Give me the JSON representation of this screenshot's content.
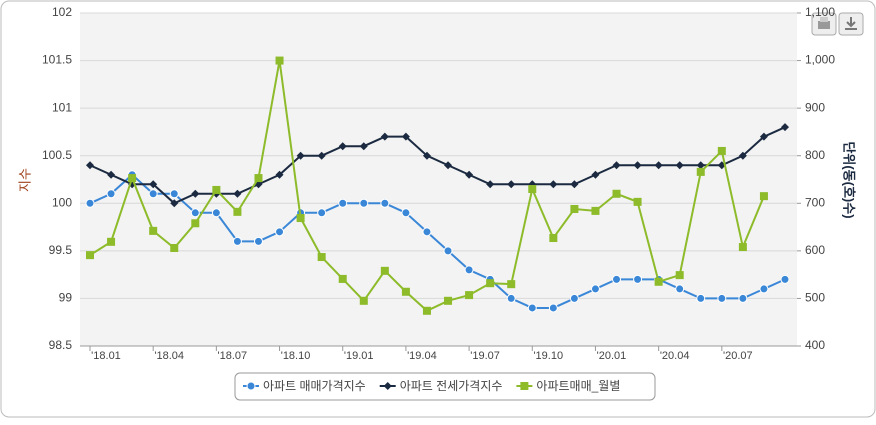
{
  "chart_data": {
    "type": "line",
    "categories": [
      "'18.01",
      null,
      null,
      "'18.04",
      null,
      null,
      "'18.07",
      null,
      null,
      "'18.10",
      null,
      null,
      "'19.01",
      null,
      null,
      "'19.04",
      null,
      null,
      "'19.07",
      null,
      null,
      "'19.10",
      null,
      null,
      "'20.01",
      null,
      null,
      "'20.04",
      null,
      null,
      "'20.07",
      null,
      null,
      null
    ],
    "ylabel": "지수",
    "y2label": "단위(동(호)수)",
    "ylim": [
      98.5,
      102
    ],
    "yticks": [
      98.5,
      99,
      99.5,
      100,
      100.5,
      101,
      101.5,
      102
    ],
    "y2lim": [
      400,
      1100
    ],
    "y2ticks": [
      400,
      500,
      600,
      700,
      800,
      900,
      {
        "value": 1000,
        "label": "1,000"
      },
      {
        "value": 1100,
        "label": "1,100"
      }
    ],
    "grid": true,
    "legend": "bottom",
    "series": [
      {
        "name": "아파트 매매가격지수",
        "color": "#3a87d8",
        "marker": "circle",
        "values": [
          100.0,
          100.1,
          100.3,
          100.1,
          100.1,
          99.9,
          99.9,
          99.6,
          99.6,
          99.7,
          99.9,
          99.9,
          100.0,
          100.0,
          100.0,
          99.9,
          99.7,
          99.5,
          99.3,
          99.2,
          99.0,
          98.9,
          98.9,
          99.0,
          99.1,
          99.2,
          99.2,
          99.2,
          99.1,
          99.0,
          99.0,
          99.0,
          99.1,
          99.2
        ]
      },
      {
        "name": "아파트 전세가격지수",
        "color": "#1b2a40",
        "marker": "diamond",
        "values": [
          100.4,
          100.3,
          100.2,
          100.2,
          100.0,
          100.1,
          100.1,
          100.1,
          100.2,
          100.3,
          100.5,
          100.5,
          100.6,
          100.6,
          100.7,
          100.7,
          100.5,
          100.4,
          100.3,
          100.2,
          100.2,
          100.2,
          100.2,
          100.2,
          100.3,
          100.4,
          100.4,
          100.4,
          100.4,
          100.4,
          100.4,
          100.5,
          100.7,
          100.8
        ]
      },
      {
        "name": "아파트매매_월별",
        "color": "#8dbb2a",
        "marker": "square",
        "axis": "y2",
        "values": [
          591,
          619,
          753,
          642,
          606,
          658,
          728,
          682,
          753,
          1000,
          669,
          587,
          541,
          495,
          558,
          514,
          474,
          495,
          507,
          532,
          530,
          730,
          627,
          688,
          684,
          720,
          703,
          535,
          549,
          766,
          810,
          608,
          715,
          null
        ]
      }
    ]
  }
}
